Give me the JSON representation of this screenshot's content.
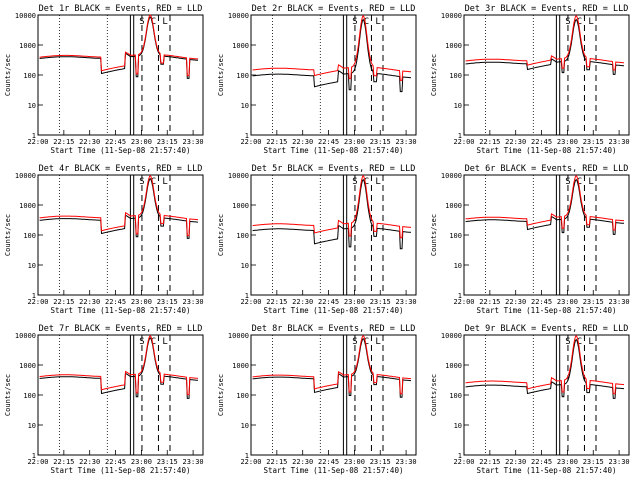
{
  "chart_data": [
    {
      "type": "line",
      "title": "Det 1r BLACK = Events, RED = LLD",
      "xlabel": "Start Time (11-Sep-08 21:57:40)",
      "ylabel": "Counts/sec",
      "ylim": [
        1,
        10000
      ],
      "yscale": "log",
      "xlim": [
        0,
        100
      ],
      "xticks": [
        "22:00",
        "22:15",
        "22:30",
        "22:45",
        "23:00",
        "23:15",
        "23:30"
      ],
      "yticks": [
        "1",
        "10",
        "100",
        "1000",
        "10000"
      ],
      "annotations": [
        "S",
        "C",
        "L"
      ],
      "series": [
        {
          "color": "#000000",
          "base": 380,
          "peak": 8500,
          "dip": 110
        },
        {
          "color": "#ff0000",
          "base": 400,
          "peak": 9500,
          "dip": 130
        }
      ]
    },
    {
      "type": "line",
      "title": "Det 2r BLACK = Events, RED = LLD",
      "xlabel": "Start Time (11-Sep-08 21:57:40)",
      "ylabel": "Counts/sec",
      "ylim": [
        1,
        10000
      ],
      "yscale": "log",
      "xlim": [
        0,
        100
      ],
      "xticks": [
        "22:00",
        "22:15",
        "22:30",
        "22:45",
        "23:00",
        "23:15",
        "23:30"
      ],
      "yticks": [
        "1",
        "10",
        "100",
        "1000",
        "10000"
      ],
      "annotations": [
        "S",
        "C",
        "L"
      ],
      "series": [
        {
          "color": "#000000",
          "base": 100,
          "peak": 7000,
          "dip": 40
        },
        {
          "color": "#ff0000",
          "base": 150,
          "peak": 9000,
          "dip": 90
        }
      ]
    },
    {
      "type": "line",
      "title": "Det 3r BLACK = Events, RED = LLD",
      "xlabel": "Start Time (11-Sep-08 21:57:40)",
      "ylabel": "Counts/sec",
      "ylim": [
        1,
        10000
      ],
      "yscale": "log",
      "xlim": [
        0,
        100
      ],
      "xticks": [
        "22:00",
        "22:15",
        "22:30",
        "22:45",
        "23:00",
        "23:15",
        "23:30"
      ],
      "yticks": [
        "1",
        "10",
        "100",
        "1000",
        "10000"
      ],
      "annotations": [
        "S",
        "C",
        "L"
      ],
      "series": [
        {
          "color": "#000000",
          "base": 250,
          "peak": 7000,
          "dip": 150
        },
        {
          "color": "#ff0000",
          "base": 300,
          "peak": 9000,
          "dip": 200
        }
      ]
    },
    {
      "type": "line",
      "title": "Det 4r BLACK = Events, RED = LLD",
      "xlabel": "Start Time (11-Sep-08 21:57:40)",
      "ylabel": "Counts/sec",
      "ylim": [
        1,
        10000
      ],
      "yscale": "log",
      "xlim": [
        0,
        100
      ],
      "xticks": [
        "22:00",
        "22:15",
        "22:30",
        "22:45",
        "23:00",
        "23:15",
        "23:30"
      ],
      "yticks": [
        "1",
        "10",
        "100",
        "1000",
        "10000"
      ],
      "annotations": [
        "S",
        "C",
        "L"
      ],
      "series": [
        {
          "color": "#000000",
          "base": 330,
          "peak": 7500,
          "dip": 110
        },
        {
          "color": "#ff0000",
          "base": 380,
          "peak": 9000,
          "dip": 130
        }
      ]
    },
    {
      "type": "line",
      "title": "Det 5r BLACK = Events, RED = LLD",
      "xlabel": "Start Time (11-Sep-08 21:57:40)",
      "ylabel": "Counts/sec",
      "ylim": [
        1,
        10000
      ],
      "yscale": "log",
      "xlim": [
        0,
        100
      ],
      "xticks": [
        "22:00",
        "22:15",
        "22:30",
        "22:45",
        "23:00",
        "23:15",
        "23:30"
      ],
      "yticks": [
        "1",
        "10",
        "100",
        "1000",
        "10000"
      ],
      "annotations": [
        "S",
        "C",
        "L"
      ],
      "series": [
        {
          "color": "#000000",
          "base": 150,
          "peak": 7000,
          "dip": 50
        },
        {
          "color": "#ff0000",
          "base": 210,
          "peak": 9000,
          "dip": 110
        }
      ]
    },
    {
      "type": "line",
      "title": "Det 6r BLACK = Events, RED = LLD",
      "xlabel": "Start Time (11-Sep-08 21:57:40)",
      "ylabel": "Counts/sec",
      "ylim": [
        1,
        10000
      ],
      "yscale": "log",
      "xlim": [
        0,
        100
      ],
      "xticks": [
        "22:00",
        "22:15",
        "22:30",
        "22:45",
        "23:00",
        "23:15",
        "23:30"
      ],
      "yticks": [
        "1",
        "10",
        "100",
        "1000",
        "10000"
      ],
      "annotations": [
        "S",
        "C",
        "L"
      ],
      "series": [
        {
          "color": "#000000",
          "base": 300,
          "peak": 7000,
          "dip": 150
        },
        {
          "color": "#ff0000",
          "base": 350,
          "peak": 9000,
          "dip": 200
        }
      ]
    },
    {
      "type": "line",
      "title": "Det 7r BLACK = Events, RED = LLD",
      "xlabel": "Start Time (11-Sep-08 21:57:40)",
      "ylabel": "Counts/sec",
      "ylim": [
        1,
        10000
      ],
      "yscale": "log",
      "xlim": [
        0,
        100
      ],
      "xticks": [
        "22:00",
        "22:15",
        "22:30",
        "22:45",
        "23:00",
        "23:15",
        "23:30"
      ],
      "yticks": [
        "1",
        "10",
        "100",
        "1000",
        "10000"
      ],
      "annotations": [
        "S",
        "C",
        "L"
      ],
      "series": [
        {
          "color": "#000000",
          "base": 380,
          "peak": 8000,
          "dip": 110
        },
        {
          "color": "#ff0000",
          "base": 420,
          "peak": 9000,
          "dip": 140
        }
      ]
    },
    {
      "type": "line",
      "title": "Det 8r BLACK = Events, RED = LLD",
      "xlabel": "Start Time (11-Sep-08 21:57:40)",
      "ylabel": "Counts/sec",
      "ylim": [
        1,
        10000
      ],
      "yscale": "log",
      "xlim": [
        0,
        100
      ],
      "xticks": [
        "22:00",
        "22:15",
        "22:30",
        "22:45",
        "23:00",
        "23:15",
        "23:30"
      ],
      "yticks": [
        "1",
        "10",
        "100",
        "1000",
        "10000"
      ],
      "annotations": [
        "S",
        "C",
        "L"
      ],
      "series": [
        {
          "color": "#000000",
          "base": 370,
          "peak": 7500,
          "dip": 120
        },
        {
          "color": "#ff0000",
          "base": 410,
          "peak": 9000,
          "dip": 150
        }
      ]
    },
    {
      "type": "line",
      "title": "Det 9r BLACK = Events, RED = LLD",
      "xlabel": "Start Time (11-Sep-08 21:57:40)",
      "ylabel": "Counts/sec",
      "ylim": [
        1,
        10000
      ],
      "yscale": "log",
      "xlim": [
        0,
        100
      ],
      "xticks": [
        "22:00",
        "22:15",
        "22:30",
        "22:45",
        "23:00",
        "23:15",
        "23:30"
      ],
      "yticks": [
        "1",
        "10",
        "100",
        "1000",
        "10000"
      ],
      "annotations": [
        "S",
        "C",
        "L"
      ],
      "series": [
        {
          "color": "#000000",
          "base": 200,
          "peak": 7000,
          "dip": 110
        },
        {
          "color": "#ff0000",
          "base": 260,
          "peak": 9000,
          "dip": 150
        }
      ]
    }
  ]
}
